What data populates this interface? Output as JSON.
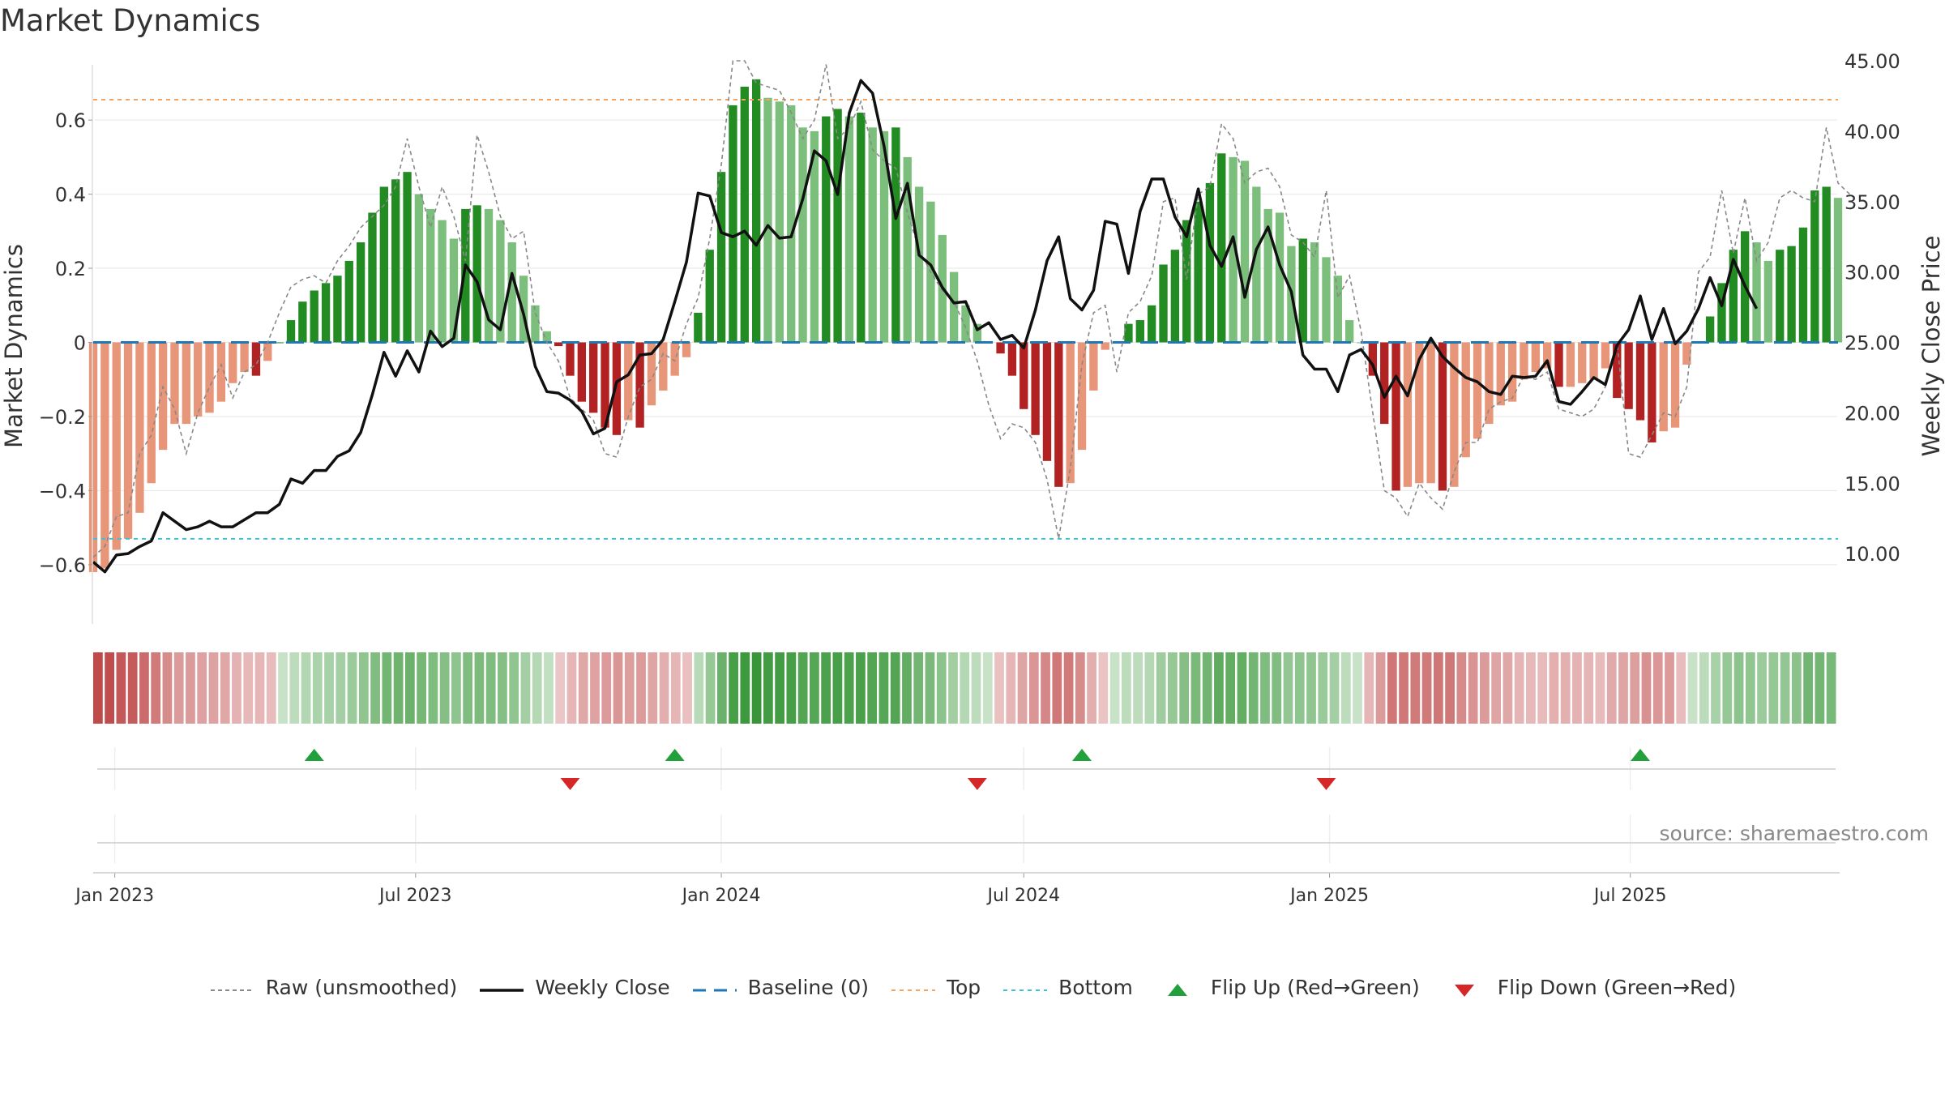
{
  "title": "Market Dynamics",
  "source": "source: sharemaestro.com",
  "legend": [
    {
      "key": "raw",
      "label": "Raw (unsmoothed)"
    },
    {
      "key": "close",
      "label": "Weekly Close"
    },
    {
      "key": "baseline",
      "label": "Baseline (0)"
    },
    {
      "key": "top",
      "label": "Top"
    },
    {
      "key": "bottom",
      "label": "Bottom"
    },
    {
      "key": "flip_up",
      "label": "Flip Up (Red→Green)"
    },
    {
      "key": "flip_down",
      "label": "Flip Down (Green→Red)"
    }
  ],
  "colors": {
    "strong_green": "#228B22",
    "light_green": "#7CBF7C",
    "strong_red": "#B22222",
    "light_red": "#E8967A",
    "raw": "#888888",
    "close": "#111111",
    "baseline": "#1f77b4",
    "top": "#F4A460",
    "bottom": "#40C0D0",
    "flip_up": "#22A03C",
    "flip_down": "#D62728"
  },
  "chart_data": {
    "type": "bar",
    "title": "Market Dynamics",
    "ylabel": "Market Dynamics",
    "y2label": "Weekly Close Price",
    "ylim": [
      -0.76,
      0.76
    ],
    "y2lim": [
      5.0,
      45.0
    ],
    "yticks": [
      "0.6",
      "0.4",
      "0.2",
      "0",
      "−0.2",
      "−0.4",
      "−0.6"
    ],
    "yticks_values": [
      0.6,
      0.4,
      0.2,
      0,
      -0.2,
      -0.4,
      -0.6
    ],
    "y2ticks": [
      "45.00",
      "40.00",
      "35.00",
      "30.00",
      "25.00",
      "20.00",
      "15.00",
      "10.00"
    ],
    "y2ticks_values": [
      45,
      40,
      35,
      30,
      25,
      20,
      15,
      10
    ],
    "xlabels": [
      "Jan 2023",
      "Jul 2023",
      "Jan 2024",
      "Jul 2024",
      "Jan 2025",
      "Jul 2025"
    ],
    "xlabels_dates": [
      "2023-01-01",
      "2023-07-01",
      "2024-01-01",
      "2024-07-01",
      "2025-01-01",
      "2025-07-01"
    ],
    "start_date": "2022-12-19",
    "top_level": 0.655,
    "bottom_level": -0.53,
    "baseline": 0,
    "dynamics": [
      -0.62,
      -0.61,
      -0.56,
      -0.53,
      -0.46,
      -0.38,
      -0.29,
      -0.22,
      -0.22,
      -0.2,
      -0.19,
      -0.16,
      -0.11,
      -0.08,
      -0.09,
      -0.05,
      0.0,
      0.06,
      0.11,
      0.14,
      0.16,
      0.18,
      0.22,
      0.27,
      0.35,
      0.42,
      0.44,
      0.46,
      0.4,
      0.36,
      0.33,
      0.28,
      0.36,
      0.37,
      0.36,
      0.33,
      0.27,
      0.18,
      0.1,
      0.03,
      -0.01,
      -0.09,
      -0.16,
      -0.19,
      -0.23,
      -0.25,
      -0.21,
      -0.23,
      -0.17,
      -0.13,
      -0.09,
      -0.04,
      0.08,
      0.25,
      0.46,
      0.64,
      0.69,
      0.71,
      0.66,
      0.65,
      0.64,
      0.58,
      0.57,
      0.61,
      0.63,
      0.61,
      0.62,
      0.58,
      0.57,
      0.58,
      0.5,
      0.42,
      0.38,
      0.29,
      0.19,
      0.1,
      0.05,
      0.0,
      -0.03,
      -0.09,
      -0.18,
      -0.25,
      -0.32,
      -0.39,
      -0.38,
      -0.29,
      -0.13,
      -0.02,
      0.0,
      0.05,
      0.06,
      0.1,
      0.21,
      0.25,
      0.33,
      0.38,
      0.43,
      0.51,
      0.5,
      0.49,
      0.42,
      0.36,
      0.35,
      0.26,
      0.28,
      0.27,
      0.23,
      0.18,
      0.06,
      0.0,
      -0.09,
      -0.22,
      -0.4,
      -0.39,
      -0.38,
      -0.38,
      -0.4,
      -0.39,
      -0.31,
      -0.26,
      -0.22,
      -0.17,
      -0.16,
      -0.1,
      -0.08,
      -0.07,
      -0.12,
      -0.12,
      -0.11,
      -0.1,
      -0.07,
      -0.15,
      -0.18,
      -0.21,
      -0.27,
      -0.24,
      -0.23,
      -0.06,
      0.0,
      0.07,
      0.16,
      0.25,
      0.3,
      0.27,
      0.22,
      0.25,
      0.26,
      0.31,
      0.41,
      0.42,
      0.39
    ],
    "raw": [
      -0.58,
      -0.55,
      -0.47,
      -0.46,
      -0.3,
      -0.25,
      -0.12,
      -0.18,
      -0.3,
      -0.19,
      -0.12,
      -0.06,
      -0.15,
      -0.08,
      -0.06,
      0.0,
      0.08,
      0.15,
      0.17,
      0.18,
      0.16,
      0.22,
      0.26,
      0.31,
      0.34,
      0.37,
      0.42,
      0.55,
      0.42,
      0.31,
      0.42,
      0.34,
      0.22,
      0.56,
      0.46,
      0.34,
      0.28,
      0.3,
      0.08,
      0.0,
      -0.05,
      -0.15,
      -0.18,
      -0.21,
      -0.3,
      -0.31,
      -0.2,
      -0.12,
      -0.1,
      -0.03,
      -0.05,
      0.05,
      0.12,
      0.28,
      0.48,
      0.76,
      0.76,
      0.7,
      0.69,
      0.68,
      0.62,
      0.55,
      0.6,
      0.75,
      0.55,
      0.58,
      0.65,
      0.52,
      0.49,
      0.47,
      0.35,
      0.25,
      0.19,
      0.14,
      0.11,
      0.04,
      -0.05,
      -0.17,
      -0.26,
      -0.22,
      -0.23,
      -0.27,
      -0.37,
      -0.53,
      -0.34,
      -0.06,
      0.08,
      0.1,
      -0.08,
      0.08,
      0.11,
      0.18,
      0.38,
      0.39,
      0.17,
      0.4,
      0.42,
      0.59,
      0.55,
      0.43,
      0.46,
      0.47,
      0.42,
      0.29,
      0.27,
      0.23,
      0.41,
      0.12,
      0.18,
      0.03,
      -0.19,
      -0.4,
      -0.42,
      -0.47,
      -0.38,
      -0.42,
      -0.45,
      -0.35,
      -0.27,
      -0.27,
      -0.18,
      -0.16,
      -0.15,
      -0.09,
      -0.1,
      -0.08,
      -0.18,
      -0.19,
      -0.2,
      -0.18,
      -0.12,
      0.0,
      -0.3,
      -0.31,
      -0.25,
      -0.19,
      -0.2,
      -0.12,
      0.19,
      0.23,
      0.41,
      0.24,
      0.39,
      0.22,
      0.27,
      0.39,
      0.41,
      0.39,
      0.38,
      0.58,
      0.43,
      0.4
    ],
    "close": [
      9.4,
      8.7,
      9.9,
      10.0,
      10.5,
      10.9,
      12.9,
      12.3,
      11.7,
      11.9,
      12.3,
      11.9,
      11.9,
      12.4,
      12.9,
      12.9,
      13.5,
      15.3,
      15.0,
      15.9,
      15.9,
      16.9,
      17.3,
      18.6,
      21.3,
      24.3,
      22.6,
      24.4,
      22.9,
      25.8,
      24.7,
      25.3,
      30.5,
      29.3,
      26.6,
      25.9,
      29.9,
      27.0,
      23.3,
      21.5,
      21.4,
      20.9,
      20.1,
      18.5,
      18.9,
      22.2,
      22.7,
      24.1,
      24.2,
      25.2,
      27.9,
      30.7,
      35.6,
      35.4,
      32.8,
      32.5,
      32.9,
      31.9,
      33.3,
      32.4,
      32.5,
      35.2,
      38.6,
      37.9,
      35.5,
      41.3,
      43.6,
      42.7,
      38.9,
      33.8,
      36.3,
      31.2,
      30.5,
      28.9,
      27.8,
      27.9,
      25.9,
      26.4,
      25.2,
      25.5,
      24.6,
      27.3,
      30.8,
      32.5,
      28.1,
      27.3,
      28.7,
      33.6,
      33.4,
      29.9,
      34.3,
      36.6,
      36.6,
      33.9,
      32.5,
      35.9,
      31.9,
      30.4,
      32.5,
      28.2,
      31.6,
      33.2,
      30.5,
      28.6,
      24.1,
      23.1,
      23.1,
      21.5,
      24.1,
      24.5,
      23.4,
      21.1,
      22.6,
      21.2,
      23.8,
      25.3,
      24.0,
      23.2,
      22.5,
      22.2,
      21.5,
      21.3,
      22.6,
      22.5,
      22.6,
      23.7,
      20.8,
      20.6,
      21.5,
      22.5,
      22.0,
      24.8,
      25.9,
      28.3,
      25.2,
      27.4,
      24.9,
      25.8,
      27.4,
      29.6,
      27.6,
      30.9,
      29.0,
      27.4
    ],
    "flip_up_dates": [
      "2023-05-01",
      "2023-12-04",
      "2024-08-05",
      "2025-07-07"
    ],
    "flip_down_dates": [
      "2023-10-02",
      "2024-06-03",
      "2024-12-30"
    ]
  }
}
